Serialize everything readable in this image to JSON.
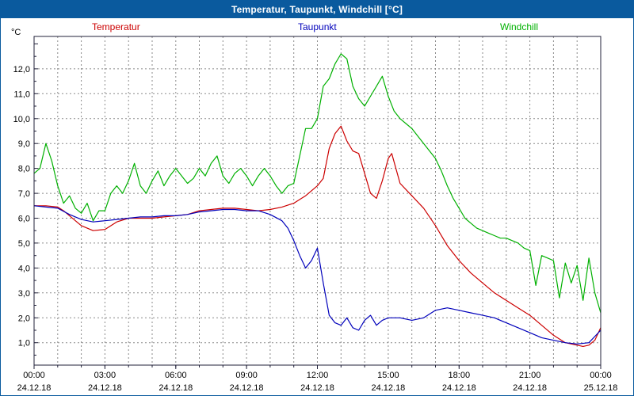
{
  "colors": {
    "titlebar_bg": "#0a5a9e",
    "titlebar_text": "#ffffff",
    "plot_border": "#22223a",
    "grid": "#8a8a8a",
    "temperatur": "#cc0000",
    "taupunkt": "#0000bb",
    "windchill": "#00b000"
  },
  "chart_data": {
    "type": "line",
    "title": "Temperatur, Taupunkt, Windchill [°C]",
    "ylabel": "°C",
    "xlabel": "",
    "grid": "dashed",
    "legend_position": "top",
    "xlim": [
      0,
      24
    ],
    "ylim": [
      0.1,
      13.3
    ],
    "x_major_ticks": [
      0,
      3,
      6,
      9,
      12,
      15,
      18,
      21,
      24
    ],
    "x_tick_labels": [
      "00:00",
      "03:00",
      "06:00",
      "09:00",
      "12:00",
      "15:00",
      "18:00",
      "21:00",
      "00:00"
    ],
    "x_date_labels": [
      "24.12.18",
      "24.12.18",
      "24.12.18",
      "24.12.18",
      "24.12.18",
      "24.12.18",
      "24.12.18",
      "24.12.18",
      "25.12.18"
    ],
    "y_ticks": [
      1,
      2,
      3,
      4,
      5,
      6,
      7,
      8,
      9,
      10,
      11,
      12
    ],
    "y_tick_labels": [
      "1,0",
      "2,0",
      "3,0",
      "4,0",
      "5,0",
      "6,0",
      "7,0",
      "8,0",
      "9,0",
      "10,0",
      "11,0",
      "12,0"
    ],
    "series": [
      {
        "name": "Temperatur",
        "color": "#cc0000",
        "points": [
          [
            0,
            6.5
          ],
          [
            0.5,
            6.5
          ],
          [
            1,
            6.45
          ],
          [
            1.25,
            6.3
          ],
          [
            1.5,
            6.1
          ],
          [
            2,
            5.7
          ],
          [
            2.5,
            5.5
          ],
          [
            3,
            5.55
          ],
          [
            3.5,
            5.85
          ],
          [
            4,
            6.0
          ],
          [
            4.5,
            6.0
          ],
          [
            5,
            6.0
          ],
          [
            5.5,
            6.05
          ],
          [
            6,
            6.1
          ],
          [
            6.5,
            6.15
          ],
          [
            7,
            6.3
          ],
          [
            7.5,
            6.35
          ],
          [
            8,
            6.4
          ],
          [
            8.5,
            6.4
          ],
          [
            9,
            6.35
          ],
          [
            9.5,
            6.3
          ],
          [
            10,
            6.35
          ],
          [
            10.5,
            6.45
          ],
          [
            11,
            6.6
          ],
          [
            11.5,
            6.9
          ],
          [
            12,
            7.3
          ],
          [
            12.25,
            7.6
          ],
          [
            12.5,
            8.8
          ],
          [
            12.75,
            9.4
          ],
          [
            13,
            9.7
          ],
          [
            13.25,
            9.1
          ],
          [
            13.5,
            8.7
          ],
          [
            13.75,
            8.6
          ],
          [
            14,
            7.8
          ],
          [
            14.25,
            7.0
          ],
          [
            14.5,
            6.8
          ],
          [
            14.75,
            7.5
          ],
          [
            15,
            8.4
          ],
          [
            15.15,
            8.6
          ],
          [
            15.5,
            7.4
          ],
          [
            16,
            6.9
          ],
          [
            16.5,
            6.4
          ],
          [
            17,
            5.7
          ],
          [
            17.5,
            4.9
          ],
          [
            18,
            4.3
          ],
          [
            18.5,
            3.8
          ],
          [
            19,
            3.4
          ],
          [
            19.5,
            3.0
          ],
          [
            20,
            2.7
          ],
          [
            20.5,
            2.4
          ],
          [
            21,
            2.1
          ],
          [
            21.5,
            1.7
          ],
          [
            22,
            1.3
          ],
          [
            22.5,
            1.0
          ],
          [
            23,
            0.9
          ],
          [
            23.25,
            0.85
          ],
          [
            23.5,
            0.9
          ],
          [
            23.75,
            1.1
          ],
          [
            24,
            1.6
          ]
        ]
      },
      {
        "name": "Taupunkt",
        "color": "#0000bb",
        "points": [
          [
            0,
            6.5
          ],
          [
            0.5,
            6.45
          ],
          [
            1,
            6.4
          ],
          [
            1.5,
            6.15
          ],
          [
            2,
            5.95
          ],
          [
            2.5,
            5.85
          ],
          [
            3,
            5.9
          ],
          [
            3.5,
            5.95
          ],
          [
            4,
            6.0
          ],
          [
            4.5,
            6.05
          ],
          [
            5,
            6.05
          ],
          [
            5.5,
            6.1
          ],
          [
            6,
            6.1
          ],
          [
            6.5,
            6.15
          ],
          [
            7,
            6.25
          ],
          [
            7.5,
            6.3
          ],
          [
            8,
            6.35
          ],
          [
            8.5,
            6.35
          ],
          [
            9,
            6.3
          ],
          [
            9.5,
            6.3
          ],
          [
            10,
            6.15
          ],
          [
            10.5,
            5.9
          ],
          [
            10.75,
            5.6
          ],
          [
            11,
            5.1
          ],
          [
            11.25,
            4.5
          ],
          [
            11.5,
            4.0
          ],
          [
            11.75,
            4.3
          ],
          [
            12,
            4.8
          ],
          [
            12.25,
            3.4
          ],
          [
            12.5,
            2.1
          ],
          [
            12.75,
            1.8
          ],
          [
            13,
            1.7
          ],
          [
            13.25,
            2.0
          ],
          [
            13.5,
            1.6
          ],
          [
            13.75,
            1.5
          ],
          [
            14,
            1.9
          ],
          [
            14.25,
            2.1
          ],
          [
            14.5,
            1.7
          ],
          [
            14.75,
            1.9
          ],
          [
            15,
            2.0
          ],
          [
            15.5,
            2.0
          ],
          [
            16,
            1.9
          ],
          [
            16.5,
            2.0
          ],
          [
            17,
            2.3
          ],
          [
            17.5,
            2.4
          ],
          [
            18,
            2.3
          ],
          [
            18.5,
            2.2
          ],
          [
            19,
            2.1
          ],
          [
            19.5,
            2.0
          ],
          [
            20,
            1.8
          ],
          [
            20.5,
            1.6
          ],
          [
            21,
            1.4
          ],
          [
            21.5,
            1.2
          ],
          [
            22,
            1.1
          ],
          [
            22.5,
            1.0
          ],
          [
            23,
            0.95
          ],
          [
            23.5,
            1.0
          ],
          [
            24,
            1.5
          ]
        ]
      },
      {
        "name": "Windchill",
        "color": "#00b000",
        "points": [
          [
            0,
            7.8
          ],
          [
            0.25,
            8.0
          ],
          [
            0.5,
            9.0
          ],
          [
            0.75,
            8.3
          ],
          [
            1,
            7.3
          ],
          [
            1.25,
            6.6
          ],
          [
            1.5,
            6.9
          ],
          [
            1.75,
            6.4
          ],
          [
            2,
            6.2
          ],
          [
            2.25,
            6.6
          ],
          [
            2.5,
            5.9
          ],
          [
            2.75,
            6.3
          ],
          [
            3,
            6.3
          ],
          [
            3.25,
            7.0
          ],
          [
            3.5,
            7.3
          ],
          [
            3.75,
            7.0
          ],
          [
            4,
            7.5
          ],
          [
            4.25,
            8.2
          ],
          [
            4.5,
            7.3
          ],
          [
            4.75,
            7.0
          ],
          [
            5,
            7.5
          ],
          [
            5.25,
            7.9
          ],
          [
            5.5,
            7.3
          ],
          [
            5.75,
            7.7
          ],
          [
            6,
            8.0
          ],
          [
            6.25,
            7.7
          ],
          [
            6.5,
            7.4
          ],
          [
            6.75,
            7.6
          ],
          [
            7,
            8.0
          ],
          [
            7.25,
            7.7
          ],
          [
            7.5,
            8.2
          ],
          [
            7.75,
            8.5
          ],
          [
            8,
            7.7
          ],
          [
            8.25,
            7.4
          ],
          [
            8.5,
            7.8
          ],
          [
            8.75,
            8.0
          ],
          [
            9,
            7.7
          ],
          [
            9.25,
            7.3
          ],
          [
            9.5,
            7.7
          ],
          [
            9.75,
            8.0
          ],
          [
            10,
            7.7
          ],
          [
            10.25,
            7.3
          ],
          [
            10.5,
            7.0
          ],
          [
            10.75,
            7.3
          ],
          [
            11,
            7.4
          ],
          [
            11.25,
            8.5
          ],
          [
            11.5,
            9.6
          ],
          [
            11.75,
            9.6
          ],
          [
            12,
            10.0
          ],
          [
            12.25,
            11.3
          ],
          [
            12.5,
            11.6
          ],
          [
            12.75,
            12.2
          ],
          [
            13,
            12.6
          ],
          [
            13.25,
            12.4
          ],
          [
            13.5,
            11.3
          ],
          [
            13.75,
            10.8
          ],
          [
            14,
            10.5
          ],
          [
            14.25,
            10.9
          ],
          [
            14.5,
            11.3
          ],
          [
            14.75,
            11.7
          ],
          [
            15,
            10.9
          ],
          [
            15.25,
            10.3
          ],
          [
            15.5,
            10.0
          ],
          [
            15.75,
            9.8
          ],
          [
            16,
            9.6
          ],
          [
            16.25,
            9.3
          ],
          [
            16.5,
            9.0
          ],
          [
            16.75,
            8.7
          ],
          [
            17,
            8.4
          ],
          [
            17.25,
            7.9
          ],
          [
            17.5,
            7.3
          ],
          [
            17.75,
            6.8
          ],
          [
            18,
            6.4
          ],
          [
            18.25,
            6.0
          ],
          [
            18.5,
            5.8
          ],
          [
            18.75,
            5.6
          ],
          [
            19,
            5.5
          ],
          [
            19.25,
            5.4
          ],
          [
            19.5,
            5.3
          ],
          [
            19.75,
            5.2
          ],
          [
            20,
            5.2
          ],
          [
            20.25,
            5.1
          ],
          [
            20.5,
            5.0
          ],
          [
            20.75,
            4.8
          ],
          [
            21,
            4.7
          ],
          [
            21.25,
            3.3
          ],
          [
            21.5,
            4.5
          ],
          [
            21.75,
            4.4
          ],
          [
            22,
            4.3
          ],
          [
            22.25,
            2.8
          ],
          [
            22.5,
            4.2
          ],
          [
            22.75,
            3.4
          ],
          [
            23,
            4.1
          ],
          [
            23.25,
            2.7
          ],
          [
            23.5,
            4.4
          ],
          [
            23.75,
            3.0
          ],
          [
            24,
            2.2
          ]
        ]
      }
    ]
  }
}
